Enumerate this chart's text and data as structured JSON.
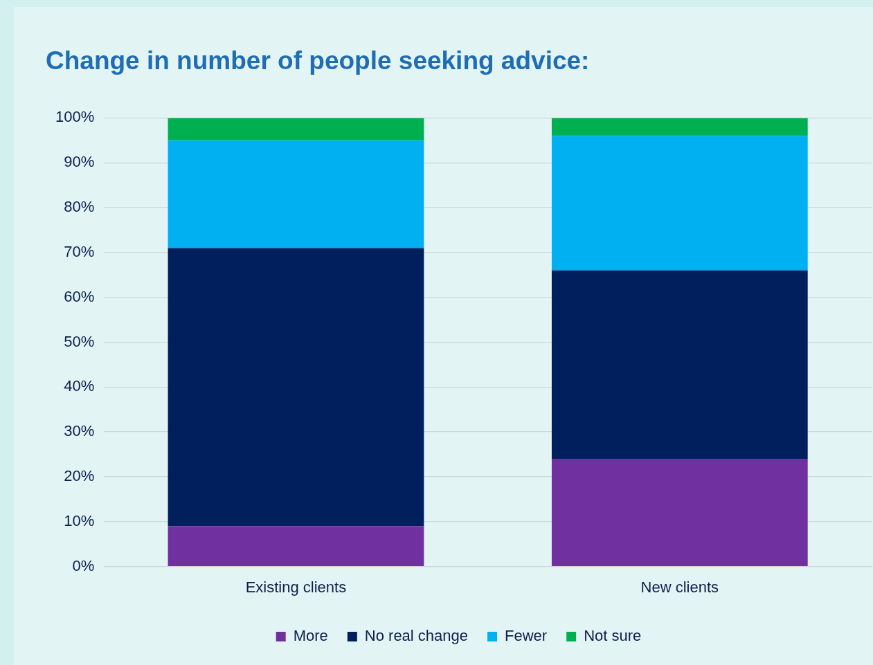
{
  "chart_data": {
    "type": "bar",
    "title": "Change in number of people seeking advice:",
    "stacked": true,
    "categories": [
      "Existing clients",
      "New clients"
    ],
    "series": [
      {
        "name": "More",
        "color": "#7030a0",
        "values": [
          9,
          24
        ]
      },
      {
        "name": "No real change",
        "color": "#001f5c",
        "values": [
          62,
          42
        ]
      },
      {
        "name": "Fewer",
        "color": "#00b0f0",
        "values": [
          24,
          30
        ]
      },
      {
        "name": "Not sure",
        "color": "#00b050",
        "values": [
          5,
          4
        ]
      }
    ],
    "ylim": [
      0,
      100
    ],
    "yticks": [
      {
        "value": 0,
        "label": "0%"
      },
      {
        "value": 10,
        "label": "10%"
      },
      {
        "value": 20,
        "label": "20%"
      },
      {
        "value": 30,
        "label": "30%"
      },
      {
        "value": 40,
        "label": "40%"
      },
      {
        "value": 50,
        "label": "50%"
      },
      {
        "value": 60,
        "label": "60%"
      },
      {
        "value": 70,
        "label": "70%"
      },
      {
        "value": 80,
        "label": "80%"
      },
      {
        "value": 90,
        "label": "90%"
      },
      {
        "value": 100,
        "label": "100%"
      }
    ],
    "grid": "y",
    "legend": "bottom"
  }
}
